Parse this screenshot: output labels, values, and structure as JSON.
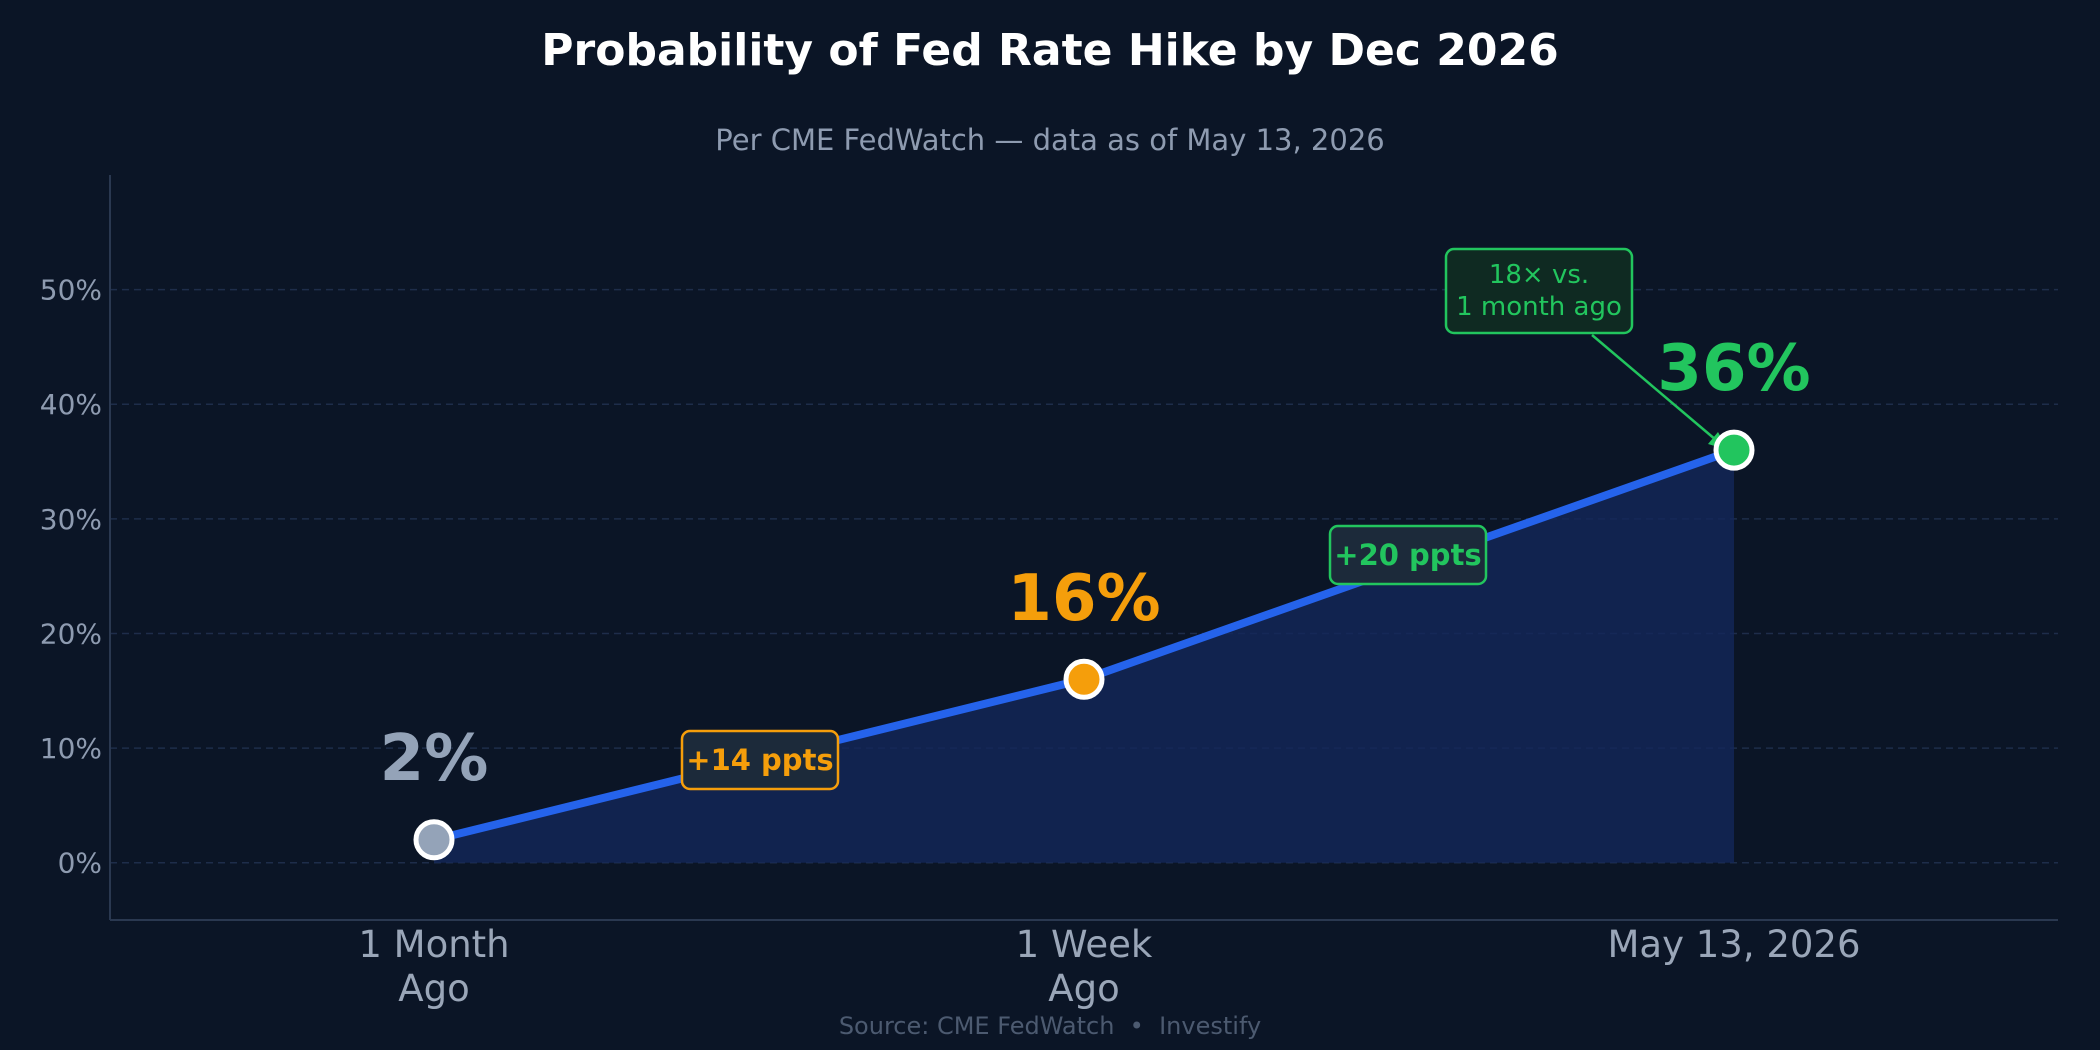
{
  "chart_data": {
    "type": "line",
    "title": "Probability of Fed Rate Hike by Dec 2026",
    "subtitle": "Per CME FedWatch — data as of May 13, 2026",
    "categories": [
      {
        "lines": [
          "1 Month",
          "Ago"
        ]
      },
      {
        "lines": [
          "1 Week",
          "Ago"
        ]
      },
      {
        "lines": [
          "May 13, 2026"
        ]
      }
    ],
    "values": [
      2,
      16,
      36
    ],
    "value_labels": [
      "2%",
      "16%",
      "36%"
    ],
    "point_colors": [
      "#94a3b8",
      "#f59e0b",
      "#22c55e"
    ],
    "ylim": [
      -5,
      60
    ],
    "yticks": [
      0,
      10,
      20,
      30,
      40,
      50
    ],
    "ytick_labels": [
      "0%",
      "10%",
      "20%",
      "30%",
      "40%",
      "50%"
    ],
    "grid": true,
    "line_color": "#2563eb",
    "annotations": {
      "deltas": [
        {
          "text": "+14 ppts",
          "color": "#f59e0b"
        },
        {
          "text": "+20 ppts",
          "color": "#22c55e"
        }
      ],
      "callout": {
        "lines": [
          "18× vs.",
          "1 month ago"
        ],
        "color": "#22c55e"
      }
    }
  },
  "footer": {
    "source": "Source: CME FedWatch  •  Investify"
  }
}
